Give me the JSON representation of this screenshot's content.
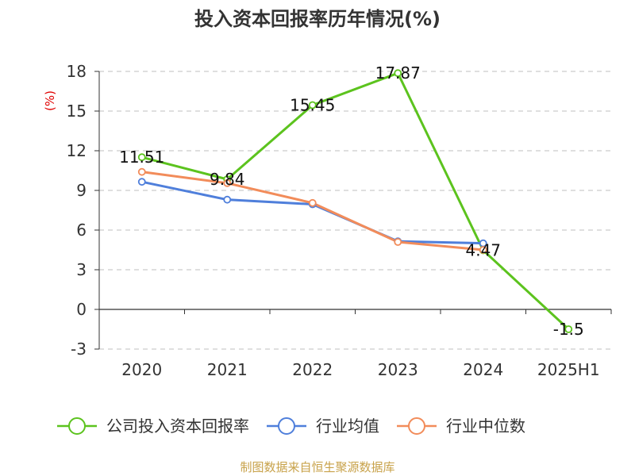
{
  "title": "投入资本回报率历年情况(%)",
  "unit_label": "(%)",
  "source": "制图数据来自恒生聚源数据库",
  "chart_data": {
    "type": "line",
    "title": "投入资本回报率历年情况(%)",
    "ylabel": "(%)",
    "xlabel": "",
    "categories": [
      "2020",
      "2021",
      "2022",
      "2023",
      "2024",
      "2025H1"
    ],
    "ylim": [
      -3,
      18
    ],
    "yticks": [
      -3,
      0,
      3,
      6,
      9,
      12,
      15,
      18
    ],
    "grid": true,
    "legend_position": "bottom",
    "series": [
      {
        "name": "公司投入资本回报率",
        "color": "#5cc31e",
        "values": [
          11.51,
          9.84,
          15.45,
          17.87,
          4.47,
          -1.5
        ],
        "labels": [
          "11.51",
          "9.84",
          "15.45",
          "17.87",
          "4.47",
          "-1.5"
        ]
      },
      {
        "name": "行业均值",
        "color": "#4f7fdb",
        "values": [
          9.65,
          8.3,
          7.95,
          5.15,
          5.0,
          null
        ]
      },
      {
        "name": "行业中位数",
        "color": "#f28c5a",
        "values": [
          10.4,
          9.55,
          8.05,
          5.1,
          4.5,
          null
        ]
      }
    ]
  }
}
